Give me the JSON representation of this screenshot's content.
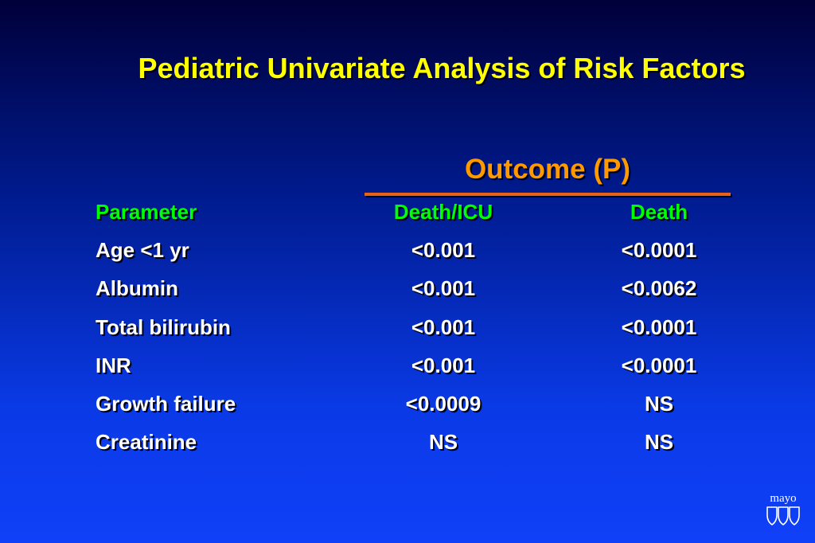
{
  "slide": {
    "title": "Pediatric Univariate Analysis of Risk Factors",
    "group_header": "Outcome (P)",
    "colors": {
      "title": "#ffff00",
      "group_header": "#ff9900",
      "header_row": "#00ff00",
      "body_text": "#ffffff",
      "rule": "#e8621a"
    }
  },
  "table": {
    "columns": [
      "Parameter",
      "Death/ICU",
      "Death"
    ],
    "rows": [
      [
        "Age <1 yr",
        "<0.001",
        "<0.0001"
      ],
      [
        "Albumin",
        "<0.001",
        "<0.0062"
      ],
      [
        "Total bilirubin",
        "<0.001",
        "<0.0001"
      ],
      [
        "INR",
        "<0.001",
        "<0.0001"
      ],
      [
        "Growth failure",
        "<0.0009",
        "NS"
      ],
      [
        "Creatinine",
        "NS",
        "NS"
      ]
    ]
  },
  "logo": {
    "text": "mayo",
    "icon": "mayo-shields-logo-icon"
  }
}
